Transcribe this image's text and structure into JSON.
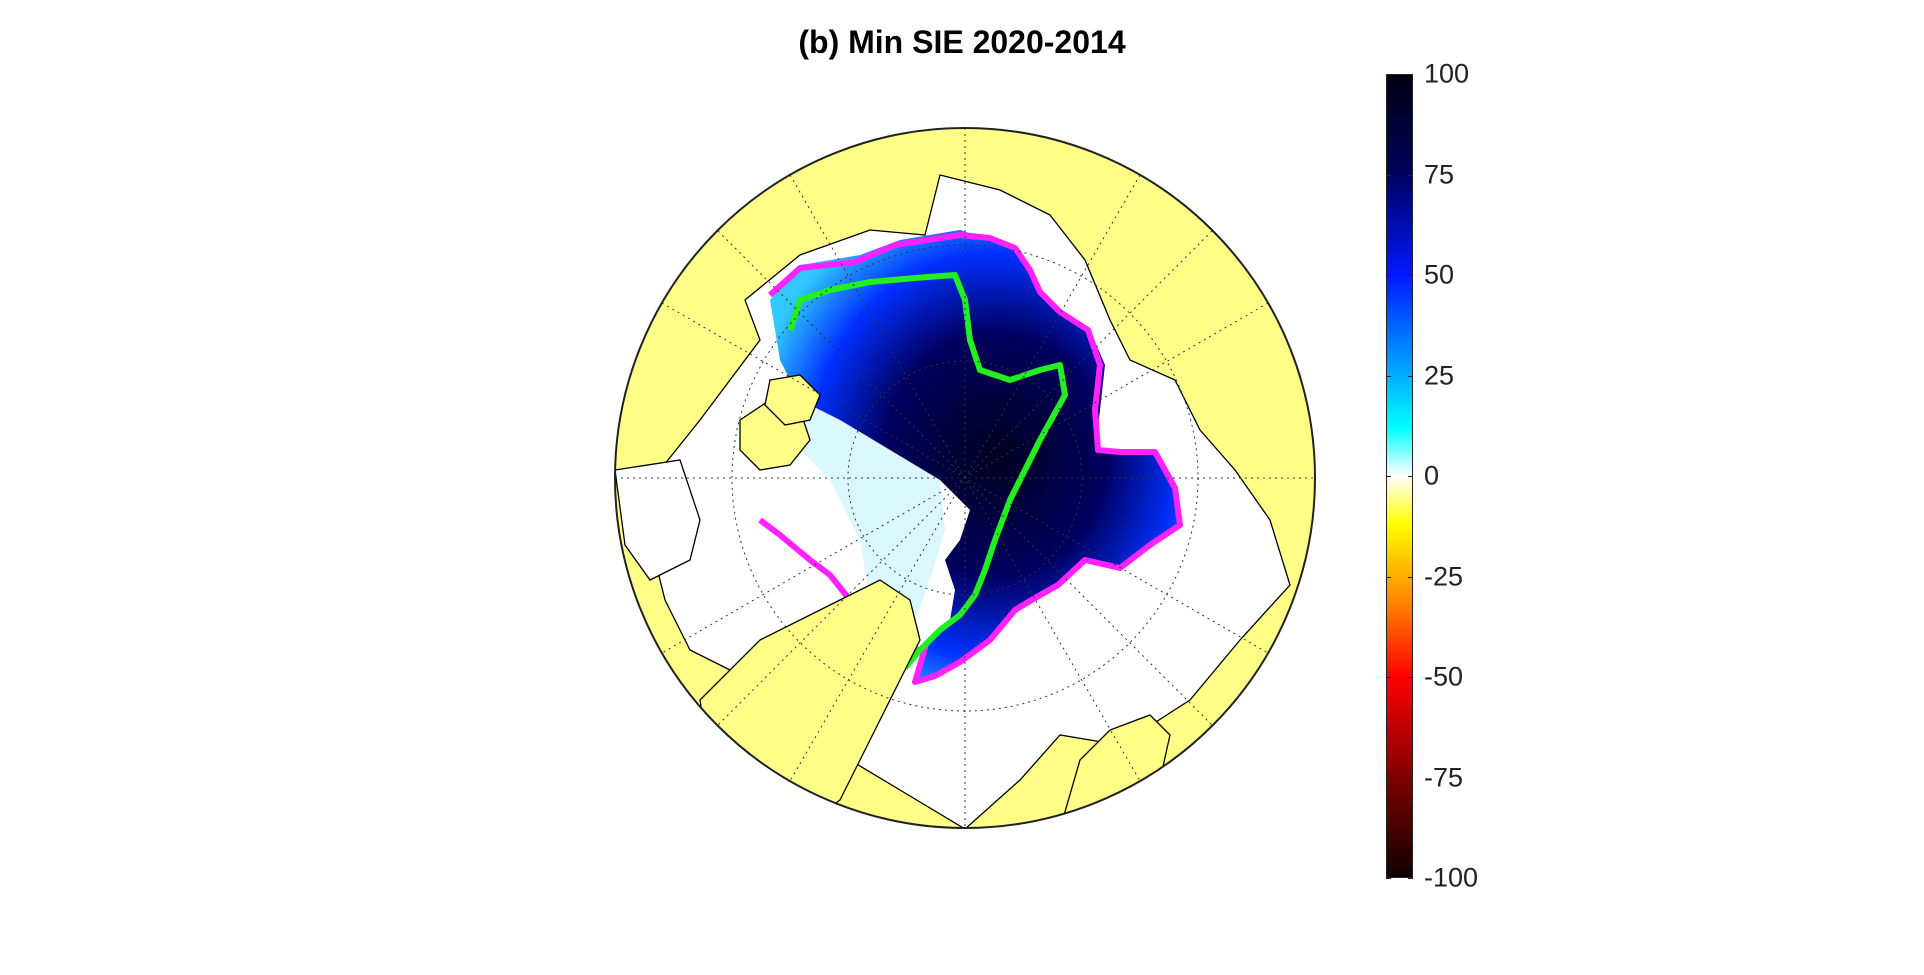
{
  "figure": {
    "title": "(b) Min SIE 2020-2014"
  },
  "colorbar": {
    "min": -100,
    "max": 100,
    "ticks": [
      "100",
      "75",
      "50",
      "25",
      "0",
      "-25",
      "-50",
      "-75",
      "-100"
    ],
    "tick_values": [
      100,
      75,
      50,
      25,
      0,
      -25,
      -50,
      -75,
      -100
    ],
    "colors": {
      "top": "#000010",
      "dark_blue": "#00005a",
      "blue": "#0018ff",
      "light_blue": "#00a8ff",
      "cyan": "#00ffff",
      "white": "#ffffff",
      "yellow": "#ffff00",
      "orange": "#ff8000",
      "red": "#ff0000",
      "dark_red": "#7a0000",
      "bottom": "#100000"
    }
  },
  "map": {
    "projection": "north polar stereographic",
    "land_color": "#ffff88",
    "ocean_color": "#ffffff",
    "coastline_color": "#000000",
    "graticule": "dotted",
    "contours": [
      {
        "color": "#ff22ff"
      },
      {
        "color": "#22ee22"
      }
    ]
  }
}
